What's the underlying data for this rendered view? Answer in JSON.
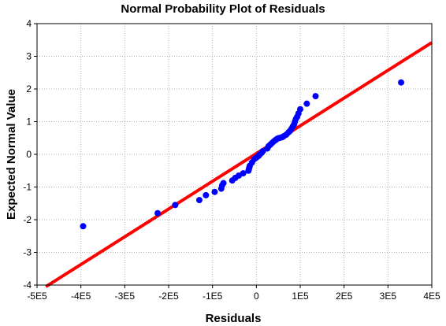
{
  "chart_data": {
    "type": "scatter",
    "title": "Normal Probability Plot of Residuals",
    "xlabel": "Residuals",
    "ylabel": "Expected Normal Value",
    "xlim": [
      -500000,
      400000
    ],
    "ylim": [
      -4,
      4
    ],
    "x_ticks": [
      -500000,
      -400000,
      -300000,
      -200000,
      -100000,
      0,
      100000,
      200000,
      300000,
      400000
    ],
    "x_tick_labels": [
      "-5E5",
      "-4E5",
      "-3E5",
      "-2E5",
      "-1E5",
      "0",
      "1E5",
      "2E5",
      "3E5",
      "4E5"
    ],
    "y_ticks": [
      4,
      3,
      2,
      1,
      0,
      -1,
      -2,
      -3,
      -4
    ],
    "y_tick_labels": [
      "4",
      "3",
      "2",
      "1",
      "0",
      "-1",
      "-2",
      "-3",
      "-4"
    ],
    "grid": true,
    "colors": {
      "points": "#0000ff",
      "fit_line": "#ff0000",
      "grid": "#b0b0b0"
    },
    "fit_line": {
      "x": [
        -480000,
        400000
      ],
      "y": [
        -4.05,
        3.42
      ]
    },
    "points": {
      "x": [
        -395000,
        -225000,
        -185000,
        -130000,
        -115000,
        -95000,
        -80000,
        -78000,
        -75000,
        -55000,
        -48000,
        -40000,
        -30000,
        -18000,
        -17000,
        -16000,
        -15000,
        -10000,
        -5000,
        0,
        5000,
        8000,
        12000,
        15000,
        25000,
        28000,
        32000,
        36000,
        40000,
        44000,
        48000,
        52000,
        58000,
        62000,
        68000,
        73000,
        77000,
        80000,
        83000,
        86000,
        88000,
        90000,
        93000,
        96000,
        100000,
        115000,
        135000,
        330000
      ],
      "y": [
        -2.2,
        -1.8,
        -1.55,
        -1.4,
        -1.25,
        -1.15,
        -1.05,
        -0.95,
        -0.88,
        -0.8,
        -0.72,
        -0.65,
        -0.58,
        -0.5,
        -0.45,
        -0.4,
        -0.35,
        -0.25,
        -0.15,
        -0.1,
        -0.05,
        0.0,
        0.05,
        0.1,
        0.18,
        0.25,
        0.3,
        0.35,
        0.4,
        0.44,
        0.48,
        0.5,
        0.52,
        0.55,
        0.6,
        0.67,
        0.72,
        0.78,
        0.85,
        0.92,
        1.0,
        1.08,
        1.15,
        1.25,
        1.38,
        1.55,
        1.78,
        2.2
      ]
    }
  }
}
